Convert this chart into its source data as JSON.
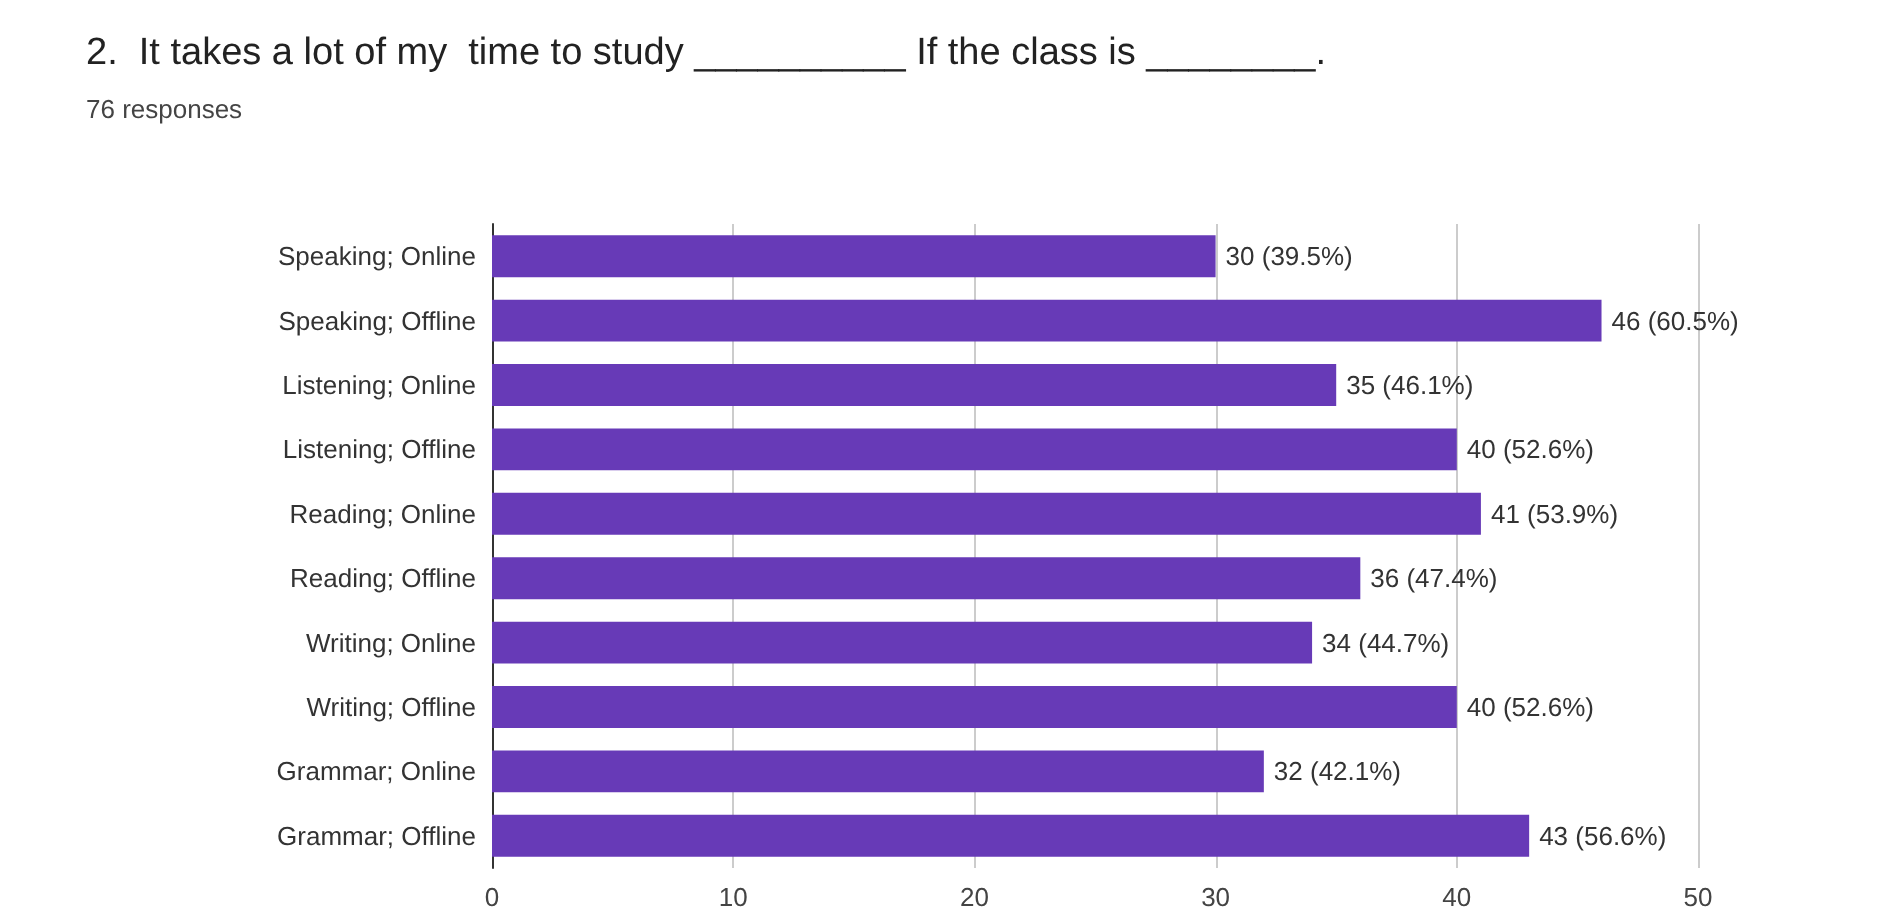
{
  "chart_data": {
    "type": "bar",
    "orientation": "horizontal",
    "title": "2.  It takes a lot of my  time to study __________ If the class is ________.",
    "subtitle": "76 responses",
    "categories": [
      "Speaking; Online",
      "Speaking; Offline",
      "Listening; Online",
      "Listening; Offline",
      "Reading; Online",
      "Reading; Offline",
      "Writing; Online",
      "Writing; Offline",
      "Grammar; Online",
      "Grammar; Offline"
    ],
    "values": [
      30,
      46,
      35,
      40,
      41,
      36,
      34,
      40,
      32,
      43
    ],
    "value_labels": [
      "30 (39.5%)",
      "46 (60.5%)",
      "35 (46.1%)",
      "40 (52.6%)",
      "41 (53.9%)",
      "36 (47.4%)",
      "34 (44.7%)",
      "40 (52.6%)",
      "32 (42.1%)",
      "43 (56.6%)"
    ],
    "color": "#673ab7",
    "xlim": [
      0,
      50
    ],
    "xticks": [
      0,
      10,
      20,
      30,
      40,
      50
    ],
    "grid": "x"
  }
}
